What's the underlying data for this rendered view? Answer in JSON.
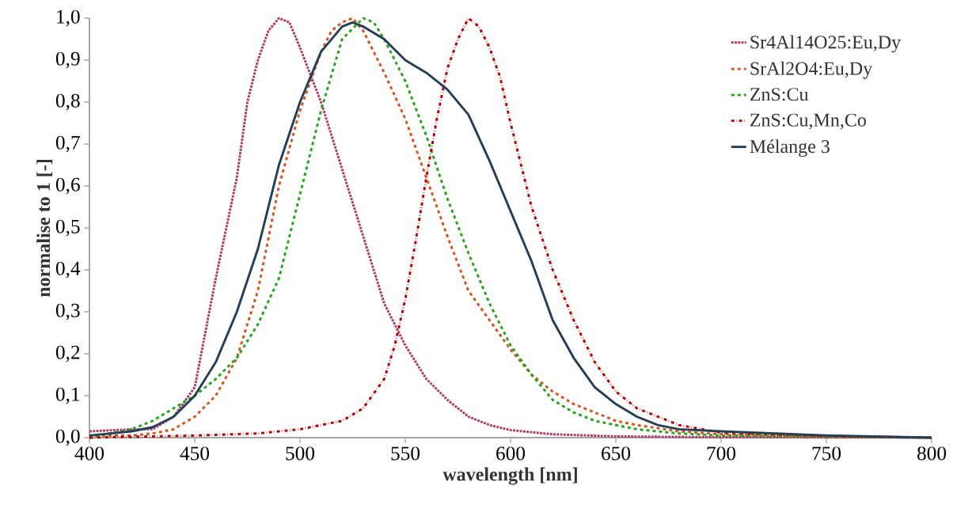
{
  "chart_data": {
    "type": "line",
    "xlabel": "wavelength [nm]",
    "ylabel": "normalise to 1 [-]",
    "xlim": [
      400,
      800
    ],
    "ylim": [
      0,
      1
    ],
    "xticks": [
      400,
      450,
      500,
      550,
      600,
      650,
      700,
      750,
      800
    ],
    "yticks": [
      {
        "value": 0,
        "label": "0,0"
      },
      {
        "value": 0.1,
        "label": "0,1"
      },
      {
        "value": 0.2,
        "label": "0,2"
      },
      {
        "value": 0.3,
        "label": "0,3"
      },
      {
        "value": 0.4,
        "label": "0,4"
      },
      {
        "value": 0.5,
        "label": "0,5"
      },
      {
        "value": 0.6,
        "label": "0,6"
      },
      {
        "value": 0.7,
        "label": "0,7"
      },
      {
        "value": 0.8,
        "label": "0,8"
      },
      {
        "value": 0.9,
        "label": "0,9"
      },
      {
        "value": 1,
        "label": "1,0"
      }
    ],
    "grid": false,
    "legend": "top right",
    "marker": "none",
    "series": [
      {
        "name": "Sr4Al14O25:Eu,Dy",
        "color": "#b03a66",
        "line_style": "dotted",
        "x": [
          400,
          420,
          430,
          440,
          450,
          460,
          465,
          470,
          475,
          480,
          485,
          490,
          495,
          500,
          510,
          520,
          530,
          540,
          550,
          560,
          570,
          580,
          590,
          600,
          620,
          650,
          700,
          800
        ],
        "values": [
          0.015,
          0.02,
          0.02,
          0.05,
          0.12,
          0.38,
          0.5,
          0.62,
          0.8,
          0.9,
          0.97,
          1.0,
          0.99,
          0.93,
          0.8,
          0.64,
          0.48,
          0.32,
          0.22,
          0.14,
          0.09,
          0.05,
          0.03,
          0.018,
          0.008,
          0.003,
          0.001,
          0
        ]
      },
      {
        "name": "SrAl2O4:Eu,Dy",
        "color": "#d9531e",
        "line_style": "dashed",
        "x": [
          400,
          420,
          430,
          440,
          450,
          460,
          470,
          480,
          490,
          500,
          510,
          515,
          520,
          525,
          530,
          540,
          550,
          560,
          570,
          580,
          590,
          600,
          610,
          620,
          630,
          640,
          650,
          660,
          680,
          700,
          750,
          800
        ],
        "values": [
          0.005,
          0.005,
          0.01,
          0.02,
          0.05,
          0.1,
          0.19,
          0.35,
          0.6,
          0.78,
          0.92,
          0.97,
          0.99,
          1.0,
          0.97,
          0.87,
          0.76,
          0.62,
          0.48,
          0.35,
          0.28,
          0.21,
          0.15,
          0.11,
          0.08,
          0.06,
          0.04,
          0.03,
          0.015,
          0.008,
          0.003,
          0
        ]
      },
      {
        "name": "ZnS:Cu",
        "color": "#22a51b",
        "line_style": "dashed",
        "x": [
          400,
          420,
          430,
          440,
          450,
          460,
          470,
          480,
          490,
          500,
          510,
          520,
          530,
          535,
          540,
          550,
          560,
          570,
          580,
          590,
          600,
          610,
          620,
          630,
          640,
          650,
          660,
          680,
          700,
          800
        ],
        "values": [
          0.0,
          0.02,
          0.04,
          0.07,
          0.1,
          0.14,
          0.19,
          0.27,
          0.38,
          0.58,
          0.78,
          0.95,
          1.0,
          0.99,
          0.95,
          0.85,
          0.72,
          0.57,
          0.44,
          0.32,
          0.22,
          0.15,
          0.09,
          0.06,
          0.04,
          0.03,
          0.02,
          0.01,
          0.005,
          0
        ]
      },
      {
        "name": "ZnS:Cu,Mn,Co",
        "color": "#c00000",
        "line_style": "dashdot",
        "x": [
          400,
          450,
          480,
          490,
          500,
          510,
          520,
          530,
          540,
          545,
          550,
          555,
          560,
          565,
          570,
          575,
          580,
          585,
          590,
          595,
          600,
          610,
          620,
          630,
          640,
          650,
          660,
          670,
          680,
          700,
          750,
          800
        ],
        "values": [
          0.0,
          0.005,
          0.01,
          0.015,
          0.02,
          0.03,
          0.04,
          0.07,
          0.14,
          0.22,
          0.33,
          0.47,
          0.62,
          0.76,
          0.88,
          0.95,
          1.0,
          0.98,
          0.93,
          0.86,
          0.75,
          0.55,
          0.4,
          0.28,
          0.18,
          0.11,
          0.07,
          0.05,
          0.03,
          0.012,
          0.004,
          0
        ]
      },
      {
        "name": "Mélange 3",
        "color": "#243f56",
        "line_style": "solid",
        "x": [
          400,
          420,
          430,
          440,
          450,
          460,
          470,
          480,
          490,
          500,
          510,
          520,
          525,
          530,
          540,
          550,
          560,
          570,
          580,
          590,
          600,
          610,
          620,
          630,
          640,
          650,
          660,
          670,
          680,
          700,
          750,
          800
        ],
        "values": [
          0.005,
          0.015,
          0.025,
          0.05,
          0.1,
          0.18,
          0.3,
          0.45,
          0.65,
          0.8,
          0.92,
          0.98,
          0.99,
          0.98,
          0.95,
          0.9,
          0.87,
          0.83,
          0.77,
          0.66,
          0.54,
          0.42,
          0.28,
          0.19,
          0.12,
          0.08,
          0.05,
          0.03,
          0.02,
          0.015,
          0.005,
          0
        ]
      }
    ]
  }
}
